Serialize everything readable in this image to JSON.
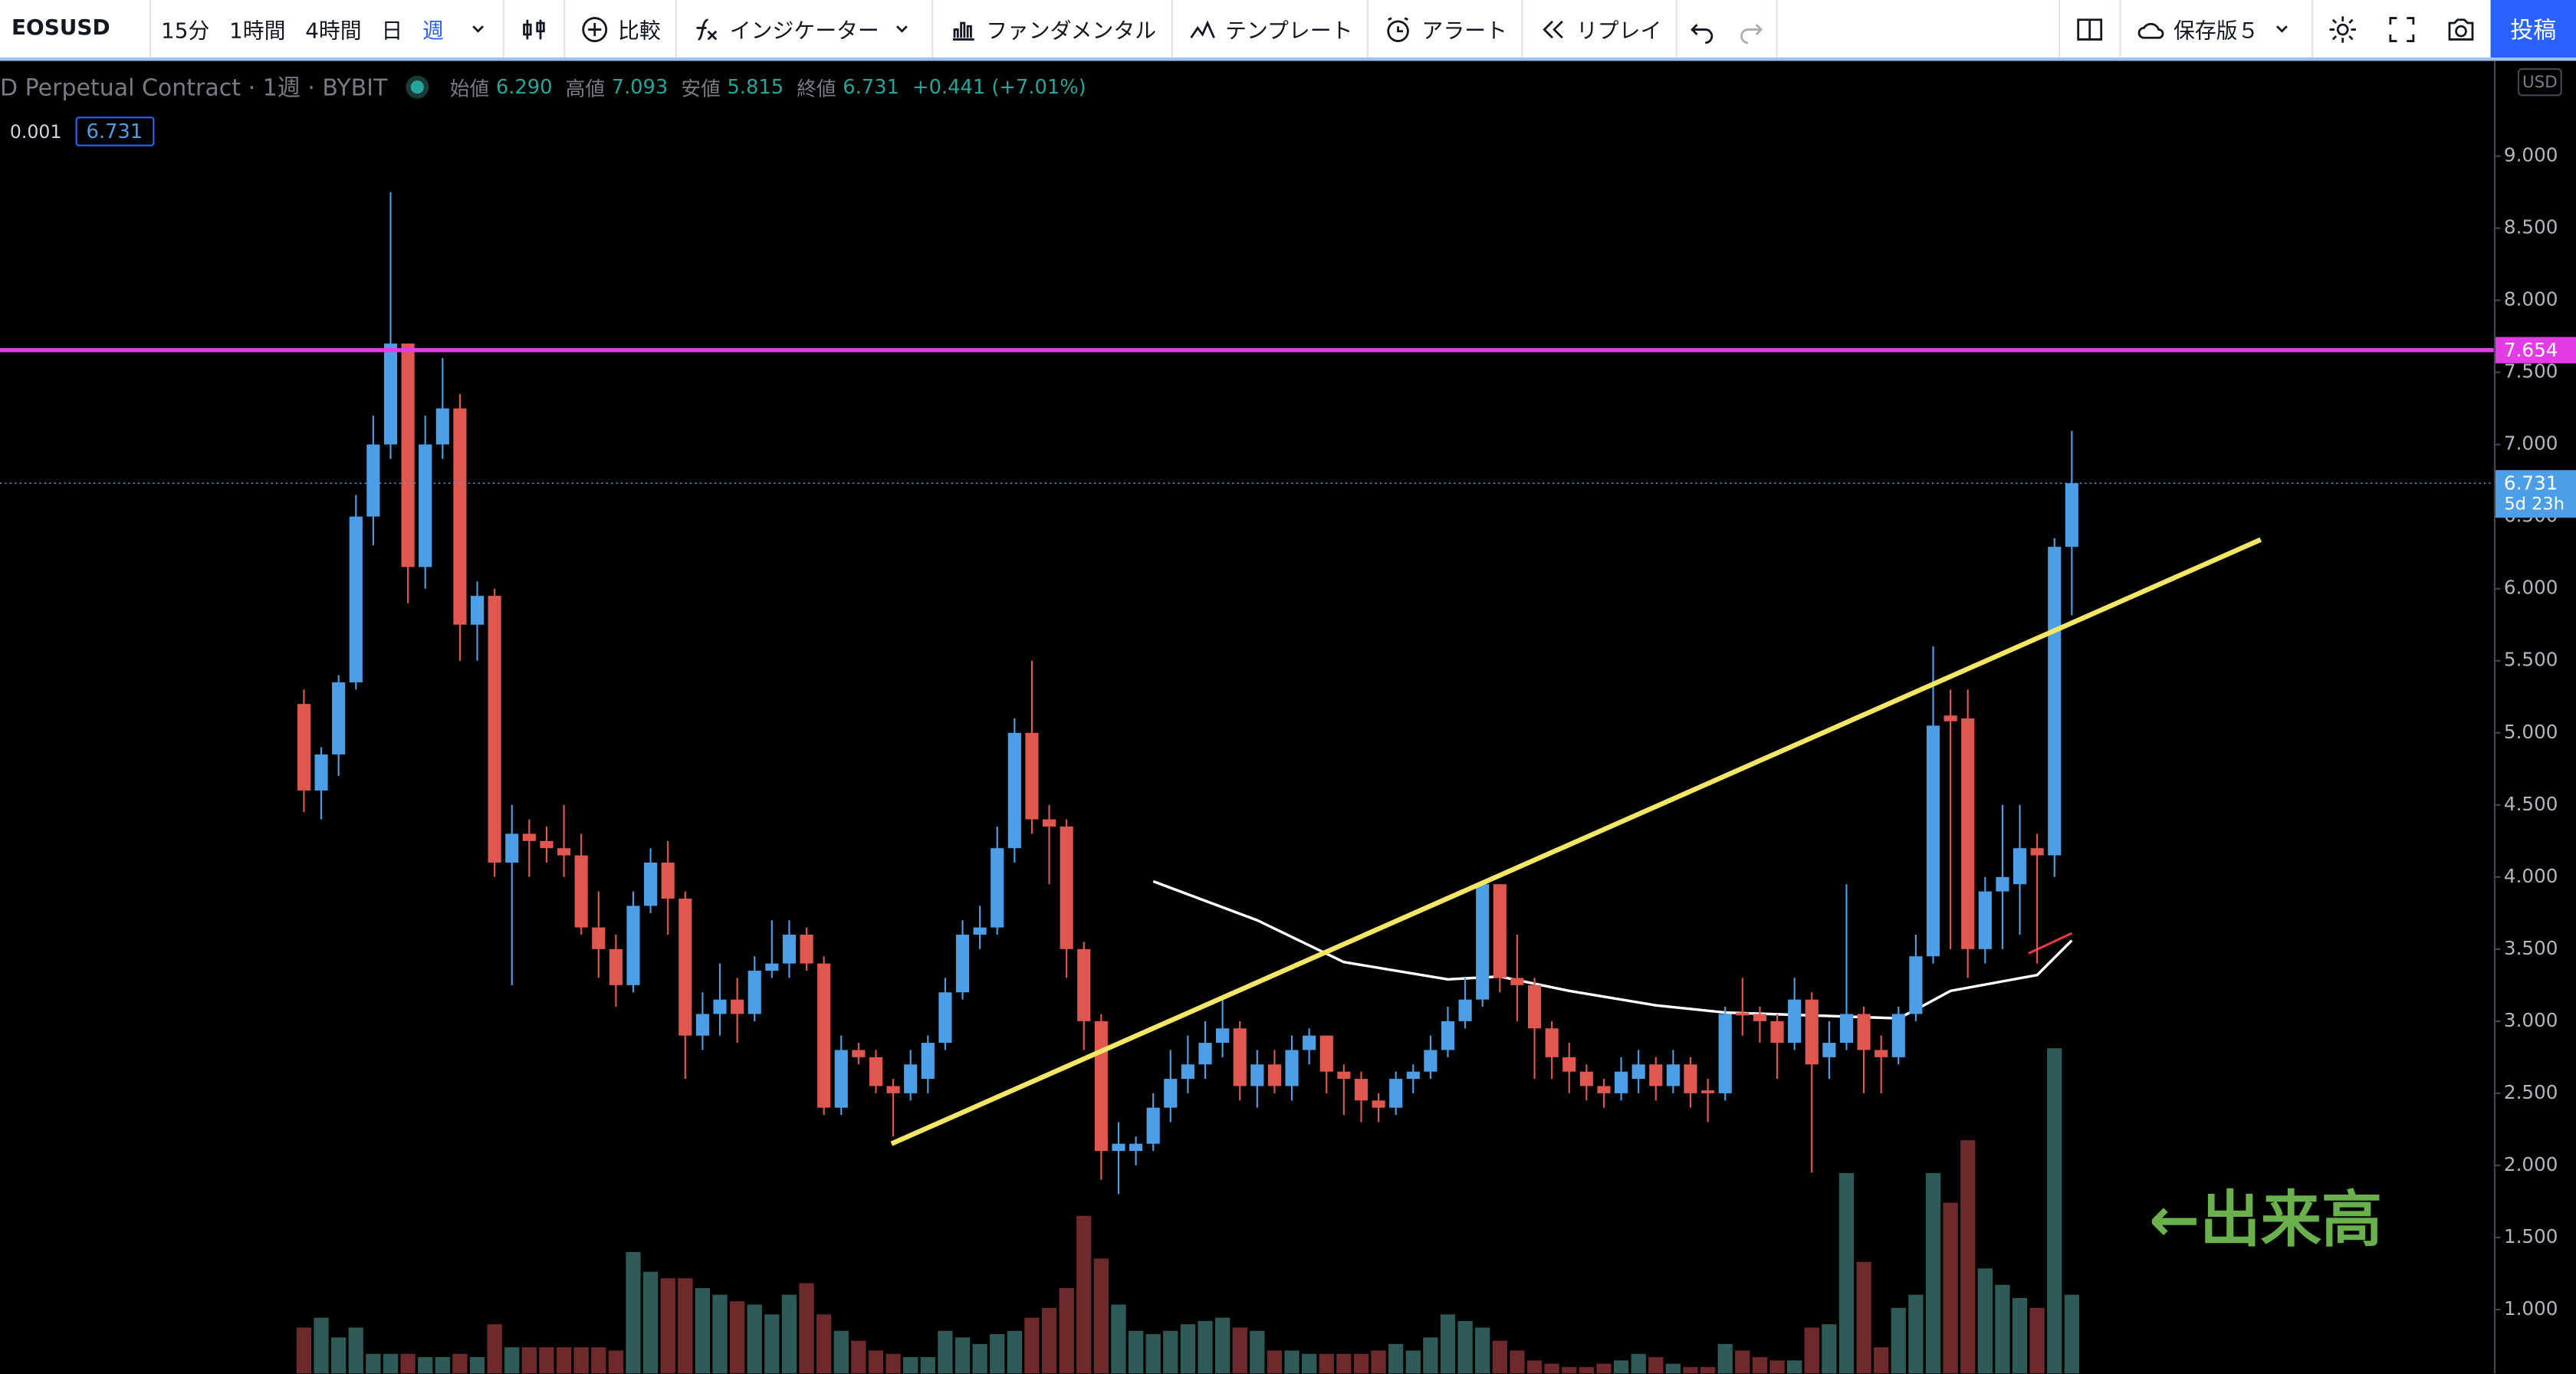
{
  "toolbar": {
    "symbol": "EOSUSD",
    "intervals": [
      "15分",
      "1時間",
      "4時間",
      "日",
      "週"
    ],
    "active_interval": 4,
    "items": [
      "比較",
      "インジケーター",
      "ファンダメンタル",
      "テンプレート",
      "アラート",
      "リプレイ"
    ],
    "layout": "保存版５",
    "publish": "投稿"
  },
  "legend": {
    "title": "D Perpetual Contract · 1週 · BYBIT",
    "ohlc": [
      {
        "label": "始値",
        "value": "6.290"
      },
      {
        "label": "高値",
        "value": "7.093"
      },
      {
        "label": "安値",
        "value": "5.815"
      },
      {
        "label": "終値",
        "value": "6.731"
      }
    ],
    "change": "+0.441 (+7.01%)",
    "precision": "0.001",
    "price_box": "6.731"
  },
  "annotation": {
    "text": "←出来高",
    "color": "#6ab04c"
  },
  "chart_data": {
    "type": "candlestick",
    "currency": "USD",
    "ylim": [
      0.556,
      9.661
    ],
    "yticks": [
      {
        "value": 1,
        "label": "1.000"
      },
      {
        "value": 1.5,
        "label": "1.500"
      },
      {
        "value": 2,
        "label": "2.000"
      },
      {
        "value": 2.5,
        "label": "2.500"
      },
      {
        "value": 3,
        "label": "3.000"
      },
      {
        "value": 3.5,
        "label": "3.500"
      },
      {
        "value": 4,
        "label": "4.000"
      },
      {
        "value": 4.5,
        "label": "4.500"
      },
      {
        "value": 5,
        "label": "5.000"
      },
      {
        "value": 5.5,
        "label": "5.500"
      },
      {
        "value": 6,
        "label": "6.000"
      },
      {
        "value": 6.5,
        "label": "6.500"
      },
      {
        "value": 7,
        "label": "7.000"
      },
      {
        "value": 7.5,
        "label": "7.500"
      },
      {
        "value": 8,
        "label": "8.000"
      },
      {
        "value": 8.5,
        "label": "8.500"
      },
      {
        "value": 9,
        "label": "9.000"
      }
    ],
    "up_color": "#4c9fe6",
    "down_color": "#e0574f",
    "volume_up_color": "#2e5b57",
    "volume_down_color": "#6e2a2a",
    "open": [
      5.2,
      4.6,
      4.85,
      5.35,
      6.5,
      7.0,
      7.7,
      6.15,
      7.0,
      7.25,
      5.75,
      5.95,
      4.1,
      4.3,
      4.25,
      4.2,
      4.15,
      3.65,
      3.5,
      3.25,
      3.8,
      4.1,
      3.85,
      2.9,
      3.05,
      3.15,
      3.05,
      3.35,
      3.4,
      3.6,
      3.4,
      2.4,
      2.8,
      2.75,
      2.55,
      2.5,
      2.6,
      2.85,
      3.2,
      3.6,
      3.65,
      4.2,
      5.0,
      4.4,
      4.35,
      3.5,
      3.0,
      2.1,
      2.1,
      2.15,
      2.4,
      2.6,
      2.7,
      2.85,
      2.95,
      2.55,
      2.7,
      2.55,
      2.8,
      2.9,
      2.65,
      2.6,
      2.45,
      2.4,
      2.6,
      2.65,
      2.8,
      3.0,
      3.15,
      3.95,
      3.3,
      3.25,
      2.95,
      2.75,
      2.65,
      2.55,
      2.5,
      2.6,
      2.7,
      2.55,
      2.7,
      2.52,
      2.5,
      3.06,
      3.05,
      3.0,
      2.85,
      3.15,
      2.75,
      2.85,
      3.05,
      2.8,
      2.75,
      3.05,
      3.45,
      5.12,
      5.1,
      3.5,
      3.9,
      3.95,
      4.2,
      4.15,
      6.29
    ],
    "high": [
      5.3,
      4.9,
      5.4,
      6.65,
      7.2,
      8.75,
      7.7,
      7.2,
      7.6,
      7.35,
      6.05,
      6.0,
      4.5,
      4.4,
      4.35,
      4.5,
      4.3,
      3.9,
      3.6,
      3.9,
      4.2,
      4.25,
      3.9,
      3.2,
      3.4,
      3.3,
      3.45,
      3.7,
      3.7,
      3.65,
      3.45,
      2.9,
      2.85,
      2.8,
      2.6,
      2.8,
      2.9,
      3.3,
      3.7,
      3.8,
      4.35,
      5.1,
      5.5,
      4.5,
      4.4,
      3.55,
      3.05,
      2.3,
      2.2,
      2.5,
      2.8,
      2.9,
      3.0,
      3.15,
      3.0,
      2.8,
      2.8,
      2.9,
      2.95,
      2.9,
      2.7,
      2.65,
      2.5,
      2.65,
      2.7,
      2.9,
      3.1,
      3.3,
      3.97,
      3.95,
      3.6,
      3.3,
      3.0,
      2.85,
      2.7,
      2.6,
      2.75,
      2.8,
      2.75,
      2.8,
      2.75,
      2.6,
      3.1,
      3.3,
      3.1,
      3.05,
      3.3,
      3.2,
      3.0,
      3.95,
      3.1,
      2.9,
      3.1,
      3.6,
      5.6,
      5.3,
      5.3,
      4.0,
      4.5,
      4.5,
      4.3,
      6.35,
      7.093
    ],
    "low": [
      4.45,
      4.4,
      4.7,
      5.3,
      6.3,
      6.9,
      5.9,
      6.0,
      6.9,
      5.5,
      5.5,
      4.0,
      3.25,
      4.0,
      4.1,
      4.0,
      3.6,
      3.3,
      3.1,
      3.2,
      3.75,
      3.6,
      2.6,
      2.8,
      2.9,
      2.85,
      3.0,
      3.3,
      3.3,
      3.35,
      2.35,
      2.35,
      2.7,
      2.5,
      2.2,
      2.45,
      2.5,
      2.8,
      3.15,
      3.5,
      3.6,
      4.1,
      4.3,
      3.95,
      3.3,
      2.8,
      1.9,
      1.8,
      2.0,
      2.1,
      2.3,
      2.5,
      2.6,
      2.75,
      2.45,
      2.4,
      2.5,
      2.45,
      2.7,
      2.5,
      2.35,
      2.3,
      2.3,
      2.35,
      2.5,
      2.6,
      2.75,
      2.95,
      3.1,
      3.2,
      3.0,
      2.6,
      2.6,
      2.5,
      2.45,
      2.4,
      2.45,
      2.5,
      2.45,
      2.5,
      2.4,
      2.3,
      2.45,
      2.9,
      2.85,
      2.6,
      2.8,
      1.95,
      2.6,
      2.8,
      2.5,
      2.5,
      2.7,
      3.0,
      3.4,
      3.5,
      3.3,
      3.4,
      3.5,
      3.6,
      3.4,
      4.0,
      5.815
    ],
    "close": [
      4.6,
      4.85,
      5.35,
      6.5,
      7.0,
      7.7,
      6.15,
      7.0,
      7.25,
      5.75,
      5.95,
      4.1,
      4.3,
      4.25,
      4.2,
      4.15,
      3.65,
      3.5,
      3.25,
      3.8,
      4.1,
      3.85,
      2.9,
      3.05,
      3.15,
      3.05,
      3.35,
      3.4,
      3.6,
      3.4,
      2.4,
      2.8,
      2.75,
      2.55,
      2.5,
      2.7,
      2.85,
      3.2,
      3.6,
      3.65,
      4.2,
      5.0,
      4.4,
      4.35,
      3.5,
      3.0,
      2.1,
      2.15,
      2.15,
      2.4,
      2.6,
      2.7,
      2.85,
      2.95,
      2.55,
      2.7,
      2.55,
      2.8,
      2.9,
      2.65,
      2.6,
      2.45,
      2.4,
      2.6,
      2.65,
      2.8,
      3.0,
      3.15,
      3.95,
      3.3,
      3.25,
      2.95,
      2.75,
      2.65,
      2.55,
      2.5,
      2.65,
      2.7,
      2.55,
      2.7,
      2.5,
      2.5,
      3.05,
      3.04,
      3.0,
      2.85,
      3.15,
      2.7,
      2.85,
      3.05,
      2.8,
      2.75,
      3.05,
      3.45,
      5.05,
      5.08,
      3.5,
      3.9,
      4.0,
      4.2,
      4.15,
      6.29,
      6.731
    ],
    "volume": [
      28,
      34,
      22,
      28,
      12,
      12,
      12,
      10,
      10,
      12,
      10,
      30,
      16,
      16,
      16,
      16,
      16,
      16,
      14,
      74,
      62,
      58,
      58,
      52,
      48,
      44,
      42,
      36,
      48,
      55,
      36,
      26,
      20,
      14,
      12,
      10,
      10,
      26,
      22,
      18,
      24,
      26,
      34,
      40,
      52,
      96,
      70,
      42,
      26,
      24,
      26,
      30,
      32,
      34,
      28,
      26,
      14,
      14,
      12,
      12,
      12,
      12,
      14,
      18,
      14,
      22,
      36,
      32,
      28,
      20,
      14,
      8,
      6,
      4,
      4,
      6,
      8,
      12,
      10,
      6,
      4,
      4,
      18,
      14,
      10,
      8,
      8,
      28,
      30,
      122,
      68,
      16,
      40,
      48,
      122,
      104,
      142,
      64,
      54,
      46,
      40,
      198,
      48
    ],
    "ma": {
      "color": "#ffffff",
      "x": [
        49,
        55,
        60,
        66,
        69,
        73,
        78,
        82,
        87,
        92,
        93,
        95,
        100,
        102
      ],
      "values": [
        3.97,
        3.7,
        3.41,
        3.29,
        3.31,
        3.21,
        3.11,
        3.06,
        3.04,
        3.02,
        3.08,
        3.21,
        3.32,
        3.56
      ]
    },
    "ma2": {
      "color": "#f23645",
      "x": [
        99.5,
        102
      ],
      "values": [
        3.47,
        3.61
      ]
    },
    "trendline": {
      "color": "#f5e663",
      "x": [
        33.9,
        112.9
      ],
      "values": [
        2.15,
        6.34
      ]
    },
    "hline": {
      "value": 7.654,
      "color": "#e33ce6"
    },
    "last": {
      "value": 6.731,
      "countdown": "5d 23h",
      "color": "#4c9fe6"
    }
  }
}
